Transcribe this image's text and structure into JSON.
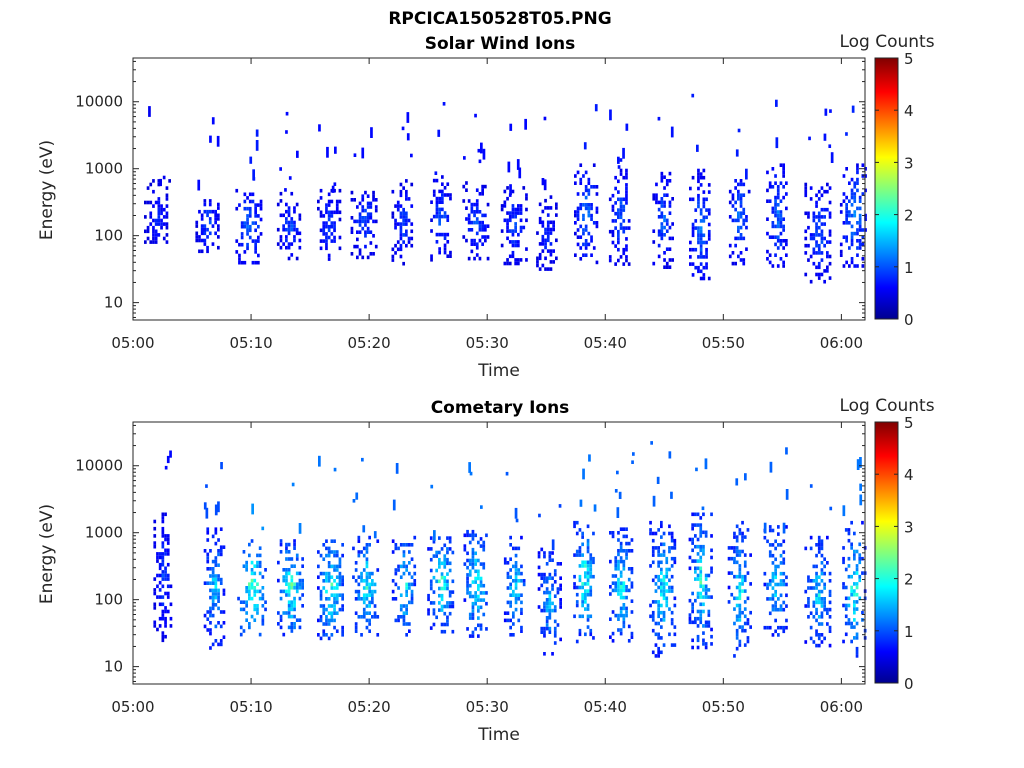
{
  "figure": {
    "title": "RPCICA150528T05.PNG"
  },
  "chart_data": [
    {
      "type": "heatmap",
      "title": "Solar Wind Ions",
      "xlabel": "Time",
      "ylabel": "Energy (eV)",
      "xlim": [
        "05:00",
        "06:02"
      ],
      "ylim": [
        5.5,
        45000
      ],
      "yscale": "log",
      "x_ticks": [
        "05:00",
        "05:10",
        "05:20",
        "05:30",
        "05:40",
        "05:50",
        "06:00"
      ],
      "y_ticks": [
        "10",
        "100",
        "1000",
        "10000"
      ],
      "grid": false,
      "colorbar": {
        "label": "Log Counts",
        "range": [
          0,
          5
        ],
        "ticks": [
          "0",
          "1",
          "2",
          "3",
          "4",
          "5"
        ],
        "colormap": "jet"
      },
      "bursts": [
        {
          "t": 2.0,
          "emin": 60,
          "emax": 700,
          "level": 0.5
        },
        {
          "t": 6.3,
          "emin": 55,
          "emax": 450,
          "level": 0.7
        },
        {
          "t": 9.8,
          "emin": 40,
          "emax": 500,
          "level": 0.9
        },
        {
          "t": 13.2,
          "emin": 45,
          "emax": 450,
          "level": 0.7
        },
        {
          "t": 16.5,
          "emin": 45,
          "emax": 500,
          "level": 0.7
        },
        {
          "t": 19.5,
          "emin": 50,
          "emax": 600,
          "level": 0.7
        },
        {
          "t": 22.8,
          "emin": 40,
          "emax": 700,
          "level": 0.7
        },
        {
          "t": 26.0,
          "emin": 45,
          "emax": 800,
          "level": 0.8
        },
        {
          "t": 29.0,
          "emin": 45,
          "emax": 650,
          "level": 0.7
        },
        {
          "t": 32.2,
          "emin": 40,
          "emax": 550,
          "level": 0.7
        },
        {
          "t": 35.0,
          "emin": 30,
          "emax": 400,
          "level": 0.6
        },
        {
          "t": 38.3,
          "emin": 40,
          "emax": 1200,
          "level": 0.9
        },
        {
          "t": 41.2,
          "emin": 40,
          "emax": 1000,
          "level": 0.8
        },
        {
          "t": 44.8,
          "emin": 35,
          "emax": 900,
          "level": 0.8
        },
        {
          "t": 48.0,
          "emin": 20,
          "emax": 1000,
          "level": 0.9
        },
        {
          "t": 51.3,
          "emin": 40,
          "emax": 900,
          "level": 0.9
        },
        {
          "t": 54.5,
          "emin": 35,
          "emax": 1200,
          "level": 0.9
        },
        {
          "t": 58.0,
          "emin": 20,
          "emax": 700,
          "level": 0.8
        },
        {
          "t": 61.0,
          "emin": 35,
          "emax": 1200,
          "level": 1.0
        }
      ]
    },
    {
      "type": "heatmap",
      "title": "Cometary Ions",
      "xlabel": "Time",
      "ylabel": "Energy (eV)",
      "xlim": [
        "05:00",
        "06:02"
      ],
      "ylim": [
        5.5,
        45000
      ],
      "yscale": "log",
      "x_ticks": [
        "05:00",
        "05:10",
        "05:20",
        "05:30",
        "05:40",
        "05:50",
        "06:00"
      ],
      "y_ticks": [
        "10",
        "100",
        "1000",
        "10000"
      ],
      "grid": false,
      "colorbar": {
        "label": "Log Counts",
        "range": [
          0,
          5
        ],
        "ticks": [
          "0",
          "1",
          "2",
          "3",
          "4",
          "5"
        ],
        "colormap": "jet"
      },
      "bursts": [
        {
          "t": 2.5,
          "emin": 25,
          "emax": 2000,
          "level": 0.7
        },
        {
          "t": 6.8,
          "emin": 20,
          "emax": 1200,
          "level": 1.4
        },
        {
          "t": 10.0,
          "emin": 30,
          "emax": 800,
          "level": 2.1
        },
        {
          "t": 13.3,
          "emin": 30,
          "emax": 800,
          "level": 1.9
        },
        {
          "t": 16.7,
          "emin": 25,
          "emax": 900,
          "level": 1.8
        },
        {
          "t": 19.7,
          "emin": 30,
          "emax": 900,
          "level": 1.7
        },
        {
          "t": 22.9,
          "emin": 30,
          "emax": 900,
          "level": 1.6
        },
        {
          "t": 26.0,
          "emin": 35,
          "emax": 1000,
          "level": 1.8
        },
        {
          "t": 29.0,
          "emin": 30,
          "emax": 1100,
          "level": 1.8
        },
        {
          "t": 32.3,
          "emin": 30,
          "emax": 900,
          "level": 1.5
        },
        {
          "t": 35.2,
          "emin": 15,
          "emax": 600,
          "level": 1.3
        },
        {
          "t": 38.2,
          "emin": 25,
          "emax": 1500,
          "level": 1.8
        },
        {
          "t": 41.3,
          "emin": 25,
          "emax": 1200,
          "level": 1.6
        },
        {
          "t": 44.8,
          "emin": 15,
          "emax": 1500,
          "level": 1.6
        },
        {
          "t": 48.0,
          "emin": 20,
          "emax": 2000,
          "level": 1.7
        },
        {
          "t": 51.3,
          "emin": 15,
          "emax": 1500,
          "level": 1.6
        },
        {
          "t": 54.4,
          "emin": 30,
          "emax": 1300,
          "level": 1.6
        },
        {
          "t": 58.0,
          "emin": 20,
          "emax": 900,
          "level": 1.5
        },
        {
          "t": 61.0,
          "emin": 15,
          "emax": 1500,
          "level": 1.8
        }
      ]
    }
  ]
}
